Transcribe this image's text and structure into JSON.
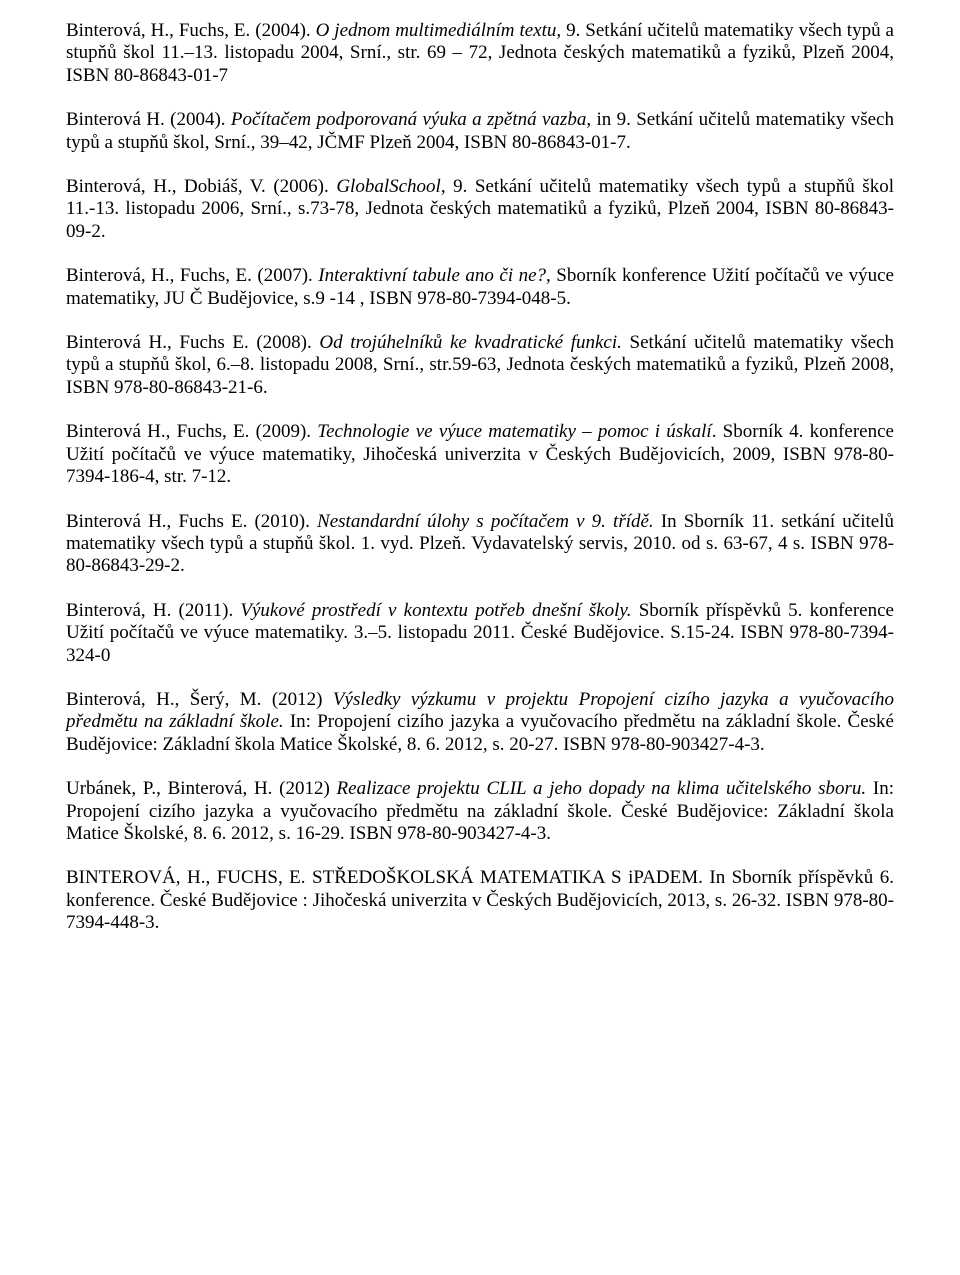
{
  "paragraphs": [
    {
      "segments": [
        {
          "text": "Binterová, H., Fuchs, E. (2004). ",
          "italic": false
        },
        {
          "text": "O jednom multimediálním textu,",
          "italic": true
        },
        {
          "text": " 9. Setkání učitelů matematiky všech typů a stupňů škol 11.–13. listopadu 2004, Srní., str. 69 – 72, Jednota českých matematiků a fyziků, Plzeň 2004, ISBN 80-86843-01-7",
          "italic": false
        }
      ]
    },
    {
      "segments": [
        {
          "text": "Binterová H. (2004). ",
          "italic": false
        },
        {
          "text": "Počítačem podporovaná výuka a zpětná vazba",
          "italic": true
        },
        {
          "text": ", in 9. Setkání učitelů matematiky všech typů a stupňů škol, Srní., 39–42, JČMF Plzeň 2004, ISBN 80-86843-01-7.",
          "italic": false
        }
      ]
    },
    {
      "segments": [
        {
          "text": "Binterová, H., Dobiáš, V. (2006). ",
          "italic": false
        },
        {
          "text": "GlobalSchool",
          "italic": true
        },
        {
          "text": ", 9. Setkání učitelů matematiky všech typů a stupňů škol 11.-13. listopadu 2006, Srní., s.73-78, Jednota českých matematiků a fyziků, Plzeň 2004, ISBN 80-86843-09-2.",
          "italic": false
        }
      ]
    },
    {
      "segments": [
        {
          "text": "Binterová, H., Fuchs, E. (2007). ",
          "italic": false
        },
        {
          "text": "Interaktivní tabule ano či ne?",
          "italic": true
        },
        {
          "text": ", Sborník konference Užití počítačů ve výuce matematiky, JU Č Budějovice, s.9 -14 , ISBN 978-80-7394-048-5.",
          "italic": false
        }
      ]
    },
    {
      "segments": [
        {
          "text": "Binterová H., Fuchs E. (2008). ",
          "italic": false
        },
        {
          "text": "Od trojúhelníků ke kvadratické funkci.",
          "italic": true
        },
        {
          "text": " Setkání učitelů matematiky všech typů a stupňů škol,  6.–8. listopadu 2008, Srní., str.59-63, Jednota českých matematiků a fyziků, Plzeň 2008, ISBN 978-80-86843-21-6.",
          "italic": false
        }
      ]
    },
    {
      "segments": [
        {
          "text": "Binterová H., Fuchs, E. (2009). ",
          "italic": false
        },
        {
          "text": "Technologie ve výuce matematiky – pomoc i úskalí",
          "italic": true
        },
        {
          "text": ". Sborník 4. konference Užití počítačů ve výuce matematiky, Jihočeská univerzita v Českých Budějovicích, 2009, ISBN 978-80-7394-186-4, str. 7-12.",
          "italic": false
        }
      ]
    },
    {
      "segments": [
        {
          "text": "Binterová H., Fuchs E. (2010). ",
          "italic": false
        },
        {
          "text": "Nestandardní úlohy s počítačem v 9. třídě.",
          "italic": true
        },
        {
          "text": " In Sborník 11. setkání učitelů matematiky všech typů a stupňů škol. 1. vyd. Plzeň. Vydavatelský servis, 2010. od s. 63-67, 4 s. ISBN 978-80-86843-29-2.",
          "italic": false
        }
      ]
    },
    {
      "segments": [
        {
          "text": "Binterová, H. (2011). ",
          "italic": false
        },
        {
          "text": "Výukové prostředí v kontextu potřeb dnešní školy.",
          "italic": true
        },
        {
          "text": "  Sborník příspěvků 5. konference Užití počítačů ve výuce matematiky. 3.–5. listopadu 2011. České Budějovice. S.15-24. ISBN 978-80-7394-324-0",
          "italic": false
        }
      ]
    },
    {
      "segments": [
        {
          "text": "Binterová, H., Šerý, M.  (2012) ",
          "italic": false
        },
        {
          "text": "Výsledky výzkumu v projektu Propojení cizího jazyka a vyučovacího\n předmětu na základní škole.",
          "italic": true
        },
        {
          "text": " In: Propojení cizího jazyka a vyučovacího předmětu na základní škole. České Budějovice: Základní škola Matice Školské, 8. 6. 2012, s. 20-27. ISBN 978-80-903427-4-3.",
          "italic": false
        }
      ]
    },
    {
      "segments": [
        {
          "text": "Urbánek, P., Binterová, H.  (2012) ",
          "italic": false
        },
        {
          "text": "Realizace projektu CLIL a jeho dopady na klima učitelského sboru.",
          "italic": true
        },
        {
          "text": "  In: Propojení cizího jazyka a vyučovacího předmětu na základní škole. České Budějovice: Základní škola Matice Školské, 8. 6. 2012, s. 16-29. ISBN 978-80-903427-4-3.",
          "italic": false
        }
      ]
    },
    {
      "segments": [
        {
          "text": "BINTEROVÁ, H., FUCHS, E. STŘEDOŠKOLSKÁ MATEMATIKA S iPADEM. In Sborník příspěvků 6. konference. České Budějovice : Jihočeská univerzita v Českých Budějovicích, 2013, s. 26-32. ISBN 978-80-7394-448-3.",
          "italic": false
        }
      ]
    }
  ]
}
